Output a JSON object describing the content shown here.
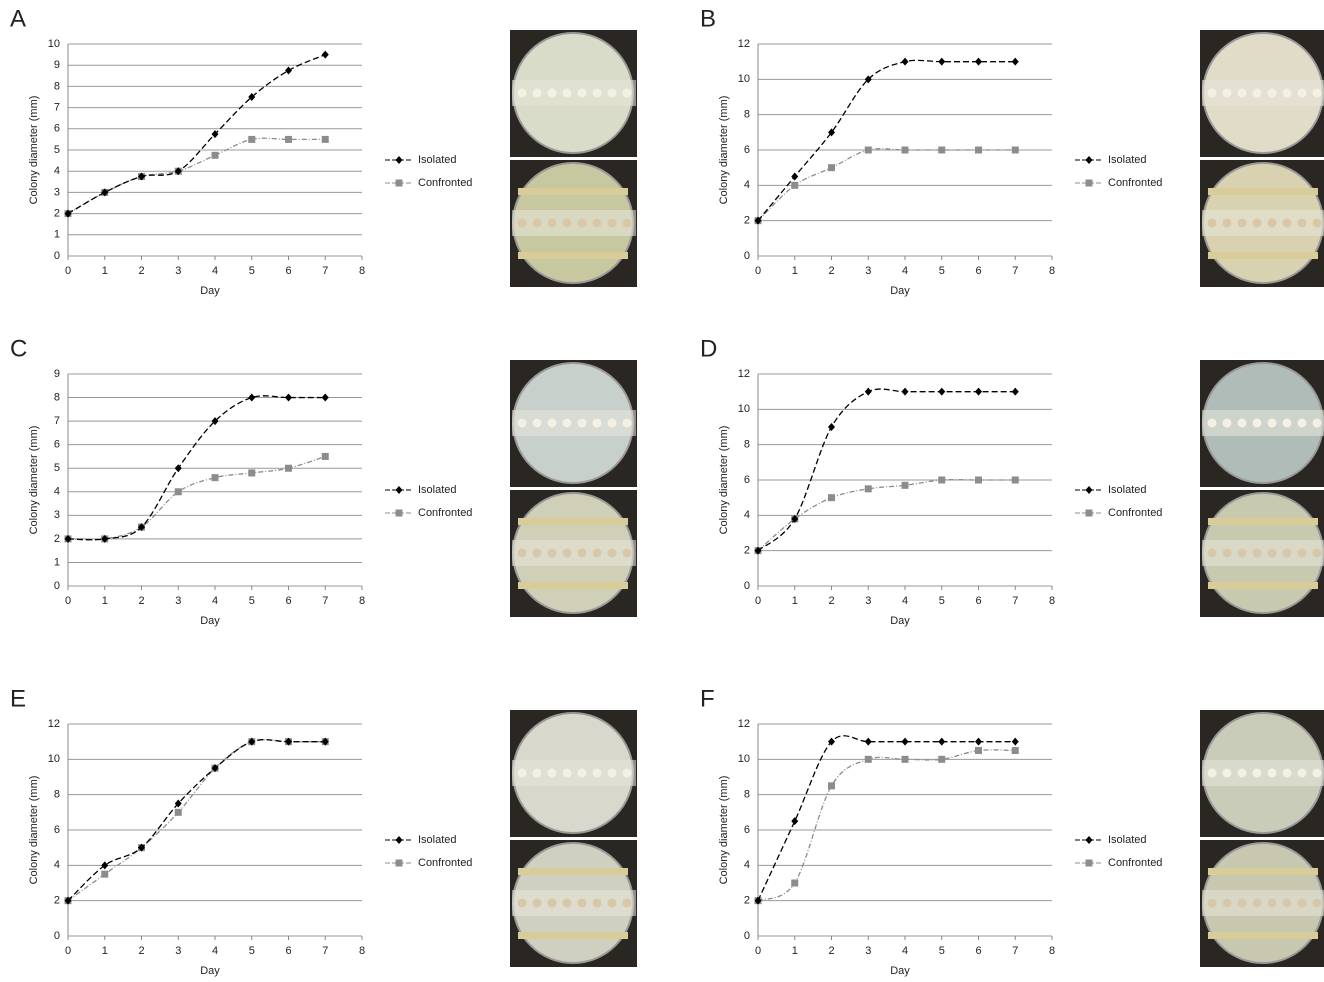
{
  "chart_data": [
    {
      "type": "line",
      "title": "A",
      "xlabel": "Day",
      "ylabel": "Colony diameter (mm)",
      "x": [
        0,
        1,
        2,
        3,
        4,
        5,
        6,
        7
      ],
      "xlim": [
        0,
        8
      ],
      "xticks": [
        0,
        1,
        2,
        3,
        4,
        5,
        6,
        7,
        8
      ],
      "ylim": [
        0,
        10
      ],
      "yticks": [
        0,
        1,
        2,
        3,
        4,
        5,
        6,
        7,
        8,
        9,
        10
      ],
      "grid": true,
      "series": [
        {
          "name": "Isolated",
          "color": "#000000",
          "marker": "diamond",
          "values": [
            2,
            3,
            3.75,
            4,
            5.75,
            7.5,
            8.75,
            9.5
          ]
        },
        {
          "name": "Confronted",
          "color": "#8c8c8c",
          "marker": "square",
          "values": [
            2,
            3,
            3.75,
            4,
            4.75,
            5.5,
            5.5,
            5.5
          ]
        }
      ]
    },
    {
      "type": "line",
      "title": "B",
      "xlabel": "Day",
      "ylabel": "Colony diameter (mm)",
      "x": [
        0,
        1,
        2,
        3,
        4,
        5,
        6,
        7
      ],
      "xlim": [
        0,
        8
      ],
      "xticks": [
        0,
        1,
        2,
        3,
        4,
        5,
        6,
        7,
        8
      ],
      "ylim": [
        0,
        12
      ],
      "yticks": [
        0,
        2,
        4,
        6,
        8,
        10,
        12
      ],
      "grid": true,
      "series": [
        {
          "name": "Isolated",
          "color": "#000000",
          "marker": "diamond",
          "values": [
            2,
            4.5,
            7,
            10,
            11,
            11,
            11,
            11
          ]
        },
        {
          "name": "Confronted",
          "color": "#8c8c8c",
          "marker": "square",
          "values": [
            2,
            4,
            5,
            6,
            6,
            6,
            6,
            6
          ]
        }
      ]
    },
    {
      "type": "line",
      "title": "C",
      "xlabel": "Day",
      "ylabel": "Colony diameter (mm)",
      "x": [
        0,
        1,
        2,
        3,
        4,
        5,
        6,
        7
      ],
      "xlim": [
        0,
        8
      ],
      "xticks": [
        0,
        1,
        2,
        3,
        4,
        5,
        6,
        7,
        8
      ],
      "ylim": [
        0,
        9
      ],
      "yticks": [
        0,
        1,
        2,
        3,
        4,
        5,
        6,
        7,
        8,
        9
      ],
      "grid": true,
      "series": [
        {
          "name": "Isolated",
          "color": "#000000",
          "marker": "diamond",
          "values": [
            2,
            2,
            2.5,
            5,
            7,
            8,
            8,
            8
          ]
        },
        {
          "name": "Confronted",
          "color": "#8c8c8c",
          "marker": "square",
          "values": [
            2,
            2,
            2.5,
            4,
            4.6,
            4.8,
            5,
            5.5
          ]
        }
      ]
    },
    {
      "type": "line",
      "title": "D",
      "xlabel": "Day",
      "ylabel": "Colony diameter (mm)",
      "x": [
        0,
        1,
        2,
        3,
        4,
        5,
        6,
        7
      ],
      "xlim": [
        0,
        8
      ],
      "xticks": [
        0,
        1,
        2,
        3,
        4,
        5,
        6,
        7,
        8
      ],
      "ylim": [
        0,
        12
      ],
      "yticks": [
        0,
        2,
        4,
        6,
        8,
        10,
        12
      ],
      "grid": true,
      "series": [
        {
          "name": "Isolated",
          "color": "#000000",
          "marker": "diamond",
          "values": [
            2,
            3.8,
            9,
            11,
            11,
            11,
            11,
            11
          ]
        },
        {
          "name": "Confronted",
          "color": "#8c8c8c",
          "marker": "square",
          "values": [
            2,
            3.8,
            5,
            5.5,
            5.7,
            6,
            6,
            6
          ]
        }
      ]
    },
    {
      "type": "line",
      "title": "E",
      "xlabel": "Day",
      "ylabel": "Colony diameter (mm)",
      "x": [
        0,
        1,
        2,
        3,
        4,
        5,
        6,
        7
      ],
      "xlim": [
        0,
        8
      ],
      "xticks": [
        0,
        1,
        2,
        3,
        4,
        5,
        6,
        7,
        8
      ],
      "ylim": [
        0,
        12
      ],
      "yticks": [
        0,
        2,
        4,
        6,
        8,
        10,
        12
      ],
      "grid": true,
      "series": [
        {
          "name": "Isolated",
          "color": "#000000",
          "marker": "diamond",
          "values": [
            2,
            4,
            5,
            7.5,
            9.5,
            11,
            11,
            11
          ]
        },
        {
          "name": "Confronted",
          "color": "#8c8c8c",
          "marker": "square",
          "values": [
            2,
            3.5,
            5,
            7,
            9.5,
            11,
            11,
            11
          ]
        }
      ]
    },
    {
      "type": "line",
      "title": "F",
      "xlabel": "Day",
      "ylabel": "Colony diameter (mm)",
      "x": [
        0,
        1,
        2,
        3,
        4,
        5,
        6,
        7
      ],
      "xlim": [
        0,
        8
      ],
      "xticks": [
        0,
        1,
        2,
        3,
        4,
        5,
        6,
        7,
        8
      ],
      "ylim": [
        0,
        12
      ],
      "yticks": [
        0,
        2,
        4,
        6,
        8,
        10,
        12
      ],
      "grid": true,
      "series": [
        {
          "name": "Isolated",
          "color": "#000000",
          "marker": "diamond",
          "values": [
            2,
            6.5,
            11,
            11,
            11,
            11,
            11,
            11
          ]
        },
        {
          "name": "Confronted",
          "color": "#8c8c8c",
          "marker": "square",
          "values": [
            2,
            3,
            8.5,
            10,
            10,
            10,
            10.5,
            10.5
          ]
        }
      ]
    }
  ]
}
